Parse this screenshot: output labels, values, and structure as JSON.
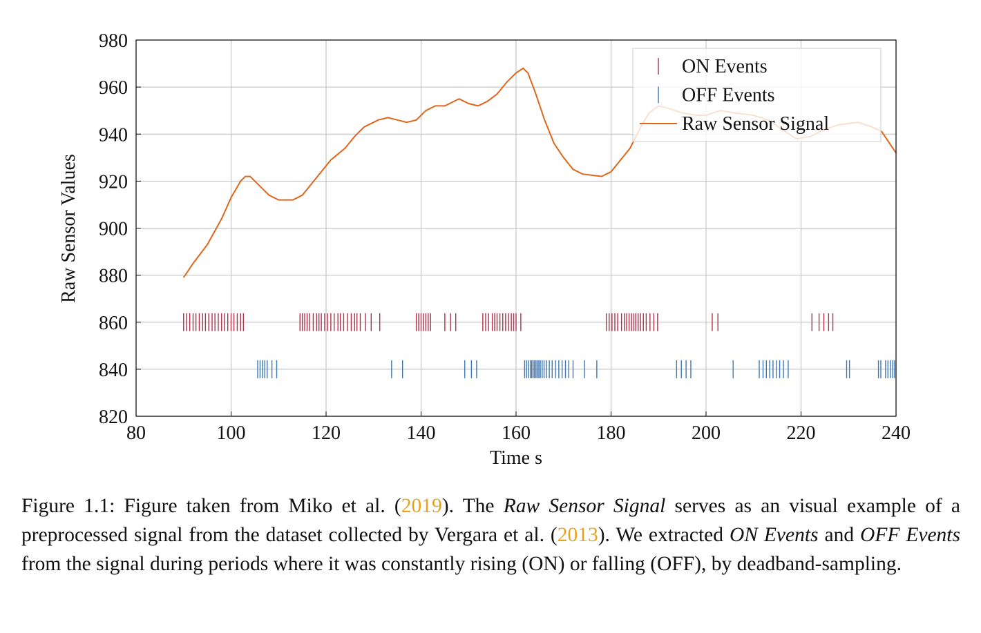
{
  "chart_data": {
    "type": "line",
    "xlabel": "Time s",
    "ylabel": "Raw Sensor Values",
    "xlim": [
      80,
      240
    ],
    "xticks": [
      80,
      100,
      120,
      140,
      160,
      180,
      200,
      220,
      240
    ],
    "ylim": [
      820,
      980
    ],
    "yticks": [
      820,
      840,
      860,
      880,
      900,
      920,
      940,
      960,
      980
    ],
    "grid": true,
    "legend": "upper right",
    "series": [
      {
        "name": "ON Events",
        "type": "scatter",
        "marker": "|",
        "color": "#b0304a",
        "x": [
          90,
          90.6,
          91.3,
          92,
          92.6,
          93.3,
          94,
          94.6,
          95.3,
          96,
          96.6,
          97.3,
          98,
          98.6,
          99.3,
          100,
          100.6,
          101.3,
          102,
          102.6,
          114.5,
          115,
          115.5,
          116,
          116.5,
          117.3,
          118,
          118.5,
          119,
          119.7,
          120.3,
          121,
          121.7,
          122.5,
          123,
          123.7,
          124.5,
          125.3,
          126,
          126.5,
          127.2,
          128.3,
          129.5,
          131.3,
          139,
          139.5,
          140,
          140.5,
          141,
          141.5,
          142,
          145,
          146.2,
          147.3,
          153,
          153.6,
          154.2,
          155,
          155.5,
          156,
          156.6,
          157.2,
          157.8,
          158.4,
          159,
          159.5,
          160,
          161,
          179,
          179.6,
          180.2,
          180.8,
          181.4,
          182.2,
          182.8,
          183.3,
          183.8,
          184.3,
          184.8,
          185.2,
          185.7,
          186.2,
          186.8,
          187.4,
          188.2,
          189,
          189.8,
          201.3,
          202.5,
          222.3,
          223.8,
          224.8,
          225.8,
          226.7
        ],
        "values": [
          860,
          860,
          860,
          860,
          860,
          860,
          860,
          860,
          860,
          860,
          860,
          860,
          860,
          860,
          860,
          860,
          860,
          860,
          860,
          860,
          860,
          860,
          860,
          860,
          860,
          860,
          860,
          860,
          860,
          860,
          860,
          860,
          860,
          860,
          860,
          860,
          860,
          860,
          860,
          860,
          860,
          860,
          860,
          860,
          860,
          860,
          860,
          860,
          860,
          860,
          860,
          860,
          860,
          860,
          860,
          860,
          860,
          860,
          860,
          860,
          860,
          860,
          860,
          860,
          860,
          860,
          860,
          860,
          860,
          860,
          860,
          860,
          860,
          860,
          860,
          860,
          860,
          860,
          860,
          860,
          860,
          860,
          860,
          860,
          860,
          860,
          860,
          860,
          860,
          860,
          860,
          860,
          860,
          860
        ]
      },
      {
        "name": "OFF Events",
        "type": "scatter",
        "marker": "|",
        "color": "#3a78b8",
        "x": [
          105.6,
          106.1,
          106.6,
          107.1,
          107.6,
          108.6,
          109.6,
          133.8,
          136.1,
          149.2,
          150.6,
          151.7,
          161.8,
          162.2,
          162.6,
          163,
          163.3,
          163.6,
          163.9,
          164.2,
          164.5,
          164.8,
          165.1,
          165.5,
          165.9,
          166.4,
          167,
          167.6,
          168.3,
          169,
          169.7,
          170.4,
          171.1,
          172,
          174.4,
          177,
          193.8,
          194.8,
          195.8,
          196.8,
          205.7,
          211.2,
          212,
          212.7,
          213.4,
          214.1,
          214.8,
          215.5,
          216.3,
          217.3,
          229.6,
          230.2,
          236.3,
          236.8,
          237.8,
          238.3,
          238.8,
          239.3,
          239.7
        ],
        "values": [
          840,
          840,
          840,
          840,
          840,
          840,
          840,
          840,
          840,
          840,
          840,
          840,
          840,
          840,
          840,
          840,
          840,
          840,
          840,
          840,
          840,
          840,
          840,
          840,
          840,
          840,
          840,
          840,
          840,
          840,
          840,
          840,
          840,
          840,
          840,
          840,
          840,
          840,
          840,
          840,
          840,
          840,
          840,
          840,
          840,
          840,
          840,
          840,
          840,
          840,
          840,
          840,
          840,
          840,
          840,
          840,
          840,
          840,
          840
        ]
      },
      {
        "name": "Raw Sensor Signal",
        "type": "line",
        "color": "#e0651a",
        "x": [
          90,
          92,
          95,
          98,
          100,
          102,
          103,
          104,
          106,
          108,
          110,
          113,
          115,
          117,
          119,
          121,
          124,
          126,
          128,
          131,
          133,
          135,
          137,
          139,
          141,
          143,
          145,
          147,
          148,
          150,
          152,
          154,
          156,
          158,
          160,
          161.5,
          162.5,
          164,
          166,
          168,
          170,
          172,
          174,
          176,
          178,
          180,
          182,
          184,
          186,
          188,
          190,
          192,
          195,
          198,
          200,
          203,
          206,
          210,
          213,
          216,
          219,
          222,
          225,
          228,
          232,
          235,
          237,
          239,
          240
        ],
        "values": [
          879,
          885,
          893,
          904,
          913,
          920,
          922,
          922,
          918,
          914,
          912,
          912,
          914,
          919,
          924,
          929,
          934,
          939,
          943,
          946,
          947,
          946,
          945,
          946,
          950,
          952,
          952,
          954,
          955,
          953,
          952,
          954,
          957,
          962,
          966,
          968,
          966,
          958,
          946,
          936,
          930,
          925,
          923,
          922.5,
          922,
          924,
          929,
          934,
          942,
          949,
          952,
          951,
          949,
          948,
          948,
          950,
          949,
          948,
          946,
          942,
          938,
          939,
          942,
          944,
          945,
          943,
          941,
          935,
          932
        ]
      }
    ]
  },
  "caption": {
    "segments": [
      {
        "text": "Figure 1.1: Figure taken from Miko et al. ("
      },
      {
        "text": "2019",
        "style": "link"
      },
      {
        "text": "). The "
      },
      {
        "text": "Raw Sensor Signal",
        "style": "italic"
      },
      {
        "text": " serves as an visual example of a preprocessed signal from the dataset collected by Vergara et al. ("
      },
      {
        "text": "2013",
        "style": "link"
      },
      {
        "text": "). We extracted "
      },
      {
        "text": "ON Events",
        "style": "italic"
      },
      {
        "text": " and "
      },
      {
        "text": "OFF Events",
        "style": "italic"
      },
      {
        "text": " from the signal during periods where it was constantly rising (ON) or falling (OFF), by deadband-sampling."
      }
    ]
  }
}
